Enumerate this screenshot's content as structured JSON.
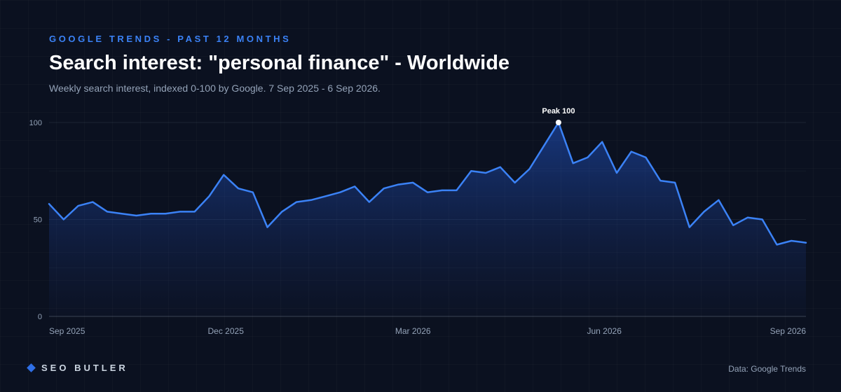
{
  "header": {
    "eyebrow": "GOOGLE TRENDS - PAST 12 MONTHS",
    "title": "Search interest: \"personal finance\" - Worldwide",
    "subtitle": "Weekly search interest, indexed 0-100 by Google. 7 Sep 2025 - 6 Sep 2026."
  },
  "footer": {
    "brand": "SEO BUTLER",
    "source": "Data: Google Trends"
  },
  "colors": {
    "background": "#0b1120",
    "accent": "#3b82f6",
    "line": "#3b82f6"
  },
  "chart_data": {
    "type": "area",
    "title": "Search interest: \"personal finance\" - Worldwide",
    "ylim": [
      0,
      100
    ],
    "yticks": [
      0,
      50,
      100
    ],
    "x_range": [
      "2025-09-07",
      "2026-09-06"
    ],
    "xticks": [
      {
        "date": "2025-09-07",
        "label": "Sep 2025"
      },
      {
        "date": "2025-12-01",
        "label": "Dec 2025"
      },
      {
        "date": "2026-03-01",
        "label": "Mar 2026"
      },
      {
        "date": "2026-06-01",
        "label": "Jun 2026"
      },
      {
        "date": "2026-09-06",
        "label": "Sep 2026"
      }
    ],
    "grid": true,
    "annotation": {
      "label": "Peak 100",
      "value": 100
    },
    "series": [
      {
        "values": [
          58,
          50,
          57,
          59,
          54,
          53,
          52,
          53,
          53,
          54,
          54,
          62,
          73,
          66,
          64,
          46,
          54,
          59,
          60,
          62,
          64,
          67,
          59,
          66,
          68,
          69,
          64,
          65,
          65,
          75,
          74,
          77,
          69,
          76,
          88,
          100,
          79,
          82,
          90,
          74,
          85,
          82,
          70,
          69,
          46,
          54,
          60,
          47,
          51,
          50,
          37,
          39,
          38
        ]
      }
    ]
  }
}
